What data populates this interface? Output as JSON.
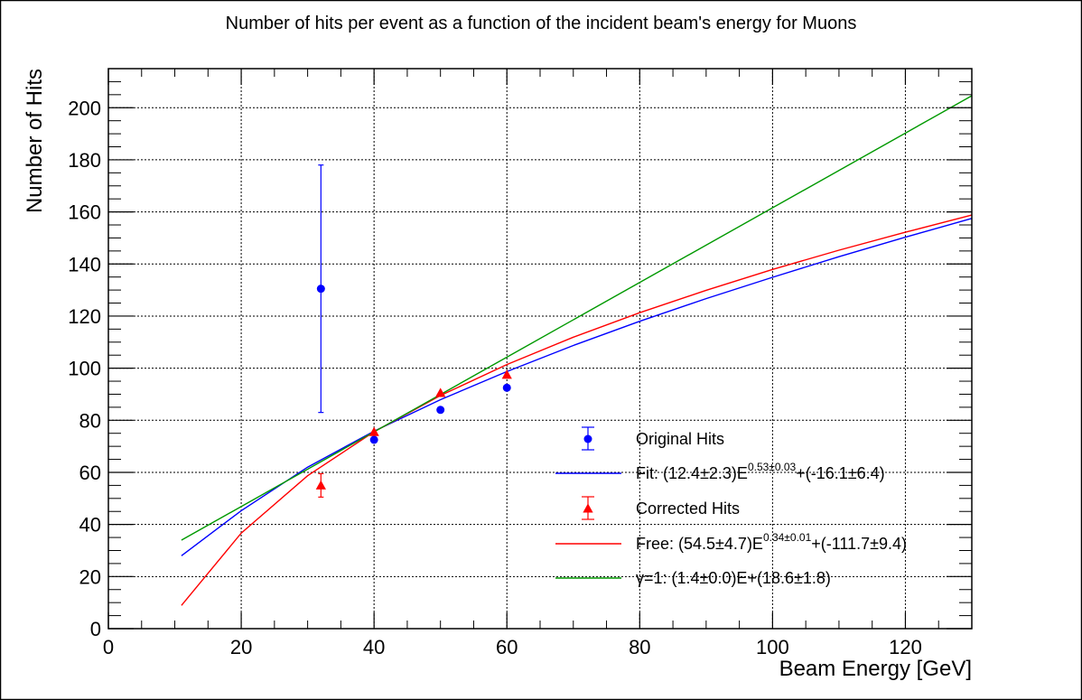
{
  "chart_data": {
    "type": "scatter",
    "title": "Number of hits per event as a function of the incident beam's energy for Muons",
    "xlabel": "Beam Energy [GeV]",
    "ylabel": "Number of Hits",
    "xlim": [
      0,
      130
    ],
    "ylim": [
      0,
      215
    ],
    "grid": true,
    "legend_position": "bottom-right",
    "x_ticks": [
      0,
      20,
      40,
      60,
      80,
      100,
      120
    ],
    "y_ticks": [
      0,
      20,
      40,
      60,
      80,
      100,
      120,
      140,
      160,
      180,
      200
    ],
    "series": [
      {
        "name": "Original Hits",
        "kind": "points",
        "marker": "circle",
        "color": "#0000ff",
        "points": [
          {
            "x": 32,
            "y": 130.5,
            "err": 47.5
          },
          {
            "x": 40,
            "y": 72.5,
            "err": 0
          },
          {
            "x": 50,
            "y": 84,
            "err": 0
          },
          {
            "x": 60,
            "y": 92.5,
            "err": 0
          }
        ]
      },
      {
        "name": "Corrected Hits",
        "kind": "points",
        "marker": "triangle",
        "color": "#ff0000",
        "points": [
          {
            "x": 32,
            "y": 55,
            "err": 4.5
          },
          {
            "x": 40,
            "y": 75.5,
            "err": 0
          },
          {
            "x": 50,
            "y": 90.5,
            "err": 0
          },
          {
            "x": 60,
            "y": 97.5,
            "err": 0
          }
        ]
      },
      {
        "name": "Fit",
        "kind": "curve",
        "color": "#0000ff",
        "x": [
          11,
          20,
          30,
          40,
          50,
          60,
          70,
          80,
          90,
          100,
          110,
          120,
          130
        ],
        "y": [
          28,
          45.3,
          62,
          75.8,
          87.9,
          98.7,
          108.7,
          118,
          126.7,
          134.9,
          142.8,
          150.3,
          157.5
        ]
      },
      {
        "name": "Free",
        "kind": "curve",
        "color": "#ff0000",
        "x": [
          11,
          20,
          30,
          40,
          50,
          60,
          70,
          80,
          90,
          100,
          110,
          120,
          130
        ],
        "y": [
          8.9,
          36.7,
          58.7,
          75.6,
          89.5,
          101.4,
          111.9,
          121.3,
          129.9,
          137.9,
          145.3,
          152.2,
          158.8
        ]
      },
      {
        "name": "γ=1",
        "kind": "curve",
        "color": "#009900",
        "x": [
          11,
          130
        ],
        "y": [
          34,
          204.6
        ]
      }
    ]
  },
  "legend": {
    "entries": [
      {
        "label": "Original Hits",
        "style": "marker",
        "marker": "circle",
        "color": "#0000ff"
      },
      {
        "label": "Fit: (12.4±2.3)E",
        "sup": "0.53±0.03",
        "suffix": "+(-16.1±6.4)",
        "style": "line",
        "color": "#0000ff"
      },
      {
        "label": "Corrected Hits",
        "style": "marker",
        "marker": "triangle",
        "color": "#ff0000"
      },
      {
        "label": "Free: (54.5±4.7)E",
        "sup": "0.34±0.01",
        "suffix": "+(-111.7±9.4)",
        "style": "line",
        "color": "#ff0000"
      },
      {
        "label": "γ=1: (1.4±0.0)E+(18.6±1.8)",
        "sup": "",
        "suffix": "",
        "style": "line",
        "color": "#009900"
      }
    ]
  }
}
